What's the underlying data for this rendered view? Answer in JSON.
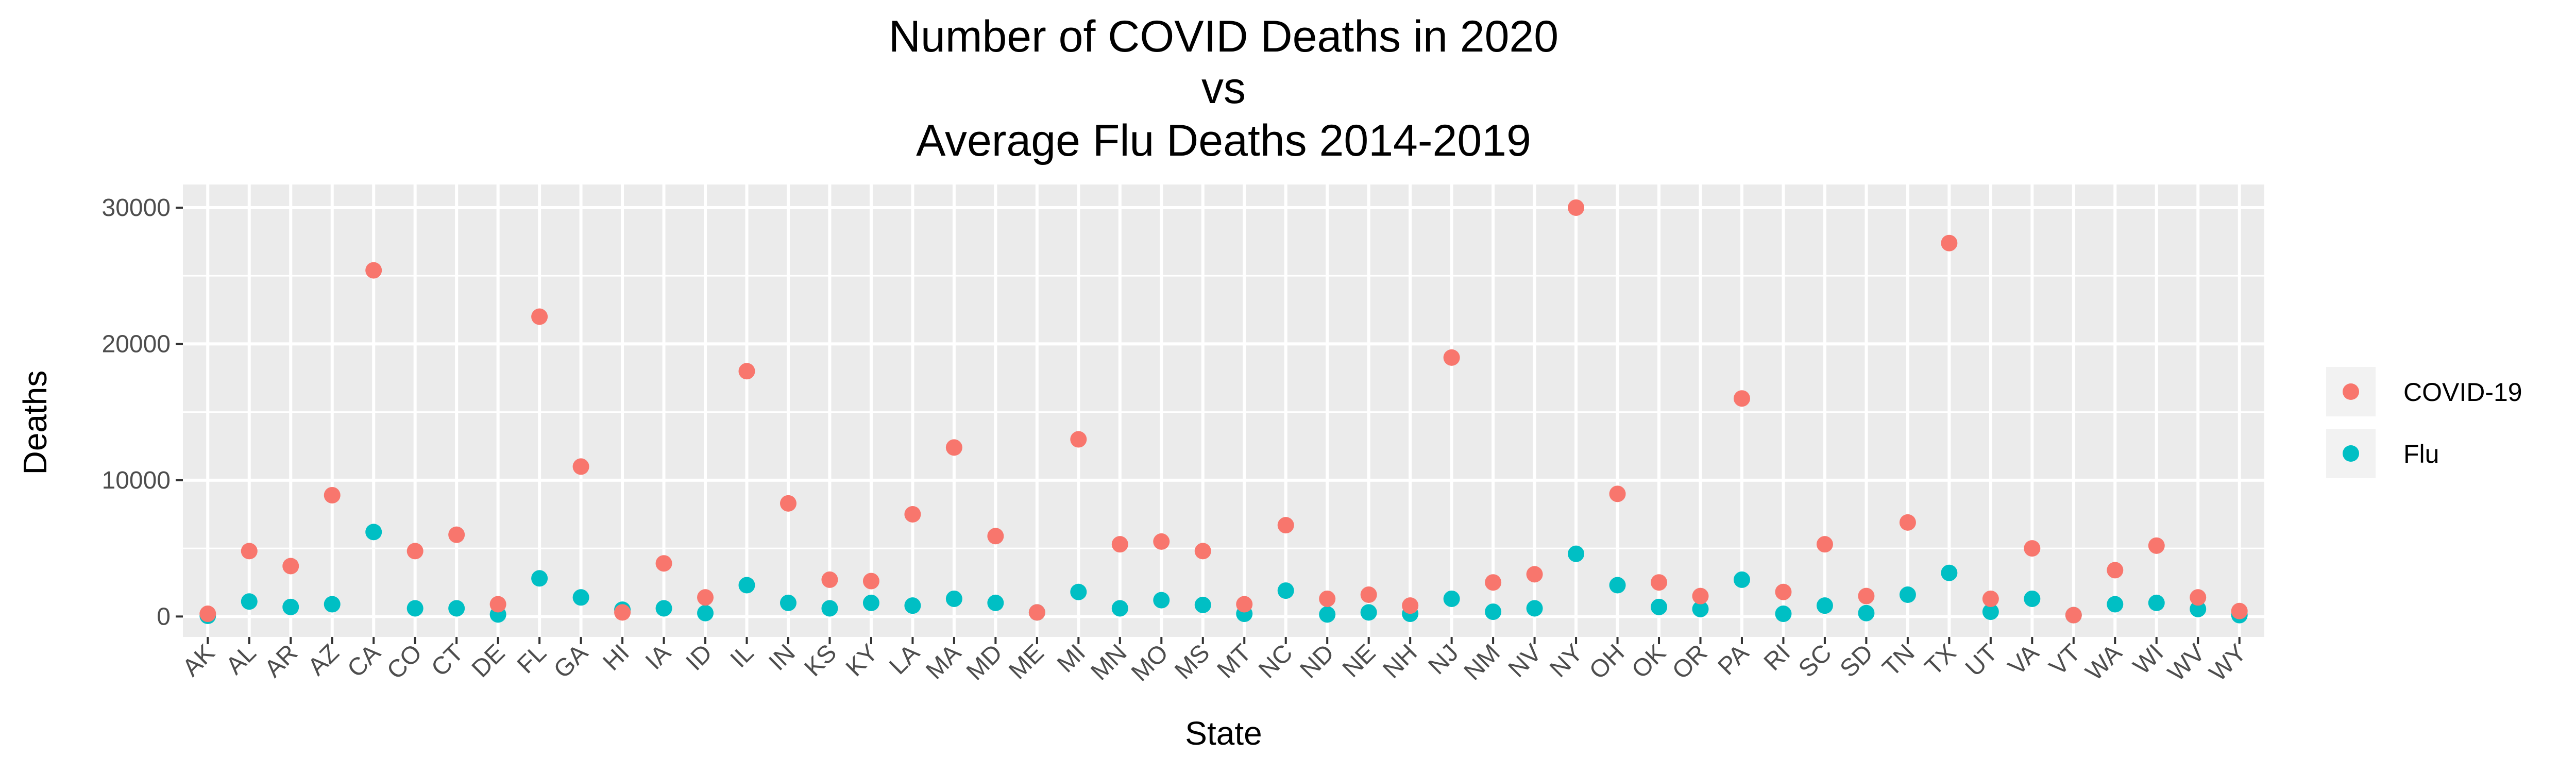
{
  "chart_data": {
    "type": "scatter",
    "title_lines": [
      "Number of COVID Deaths in 2020",
      "vs",
      "Average Flu Deaths 2014-2019"
    ],
    "xlabel": "State",
    "ylabel": "Deaths",
    "ylim": [
      -1500,
      31700
    ],
    "yticks": [
      0,
      10000,
      20000,
      30000
    ],
    "grid": true,
    "legend_position": "right",
    "categories": [
      "AK",
      "AL",
      "AR",
      "AZ",
      "CA",
      "CO",
      "CT",
      "DE",
      "FL",
      "GA",
      "HI",
      "IA",
      "ID",
      "IL",
      "IN",
      "KS",
      "KY",
      "LA",
      "MA",
      "MD",
      "ME",
      "MI",
      "MN",
      "MO",
      "MS",
      "MT",
      "NC",
      "ND",
      "NE",
      "NH",
      "NJ",
      "NM",
      "NV",
      "NY",
      "OH",
      "OK",
      "OR",
      "PA",
      "RI",
      "SC",
      "SD",
      "TN",
      "TX",
      "UT",
      "VA",
      "VT",
      "WA",
      "WI",
      "WV",
      "WY"
    ],
    "series": [
      {
        "name": "COVID-19",
        "color": "#F8766D",
        "values": [
          200,
          4800,
          3700,
          8900,
          25400,
          4800,
          6000,
          900,
          22000,
          11000,
          300,
          3900,
          1400,
          18000,
          8300,
          2700,
          2600,
          7500,
          12400,
          5900,
          300,
          13000,
          5300,
          5500,
          4800,
          900,
          6700,
          1300,
          1600,
          800,
          19000,
          2500,
          3100,
          30000,
          9000,
          2500,
          1500,
          16000,
          1800,
          5300,
          1500,
          6900,
          27400,
          1300,
          5000,
          100,
          3400,
          5200,
          1400,
          400
        ]
      },
      {
        "name": "Flu",
        "color": "#00BFC4",
        "values": [
          50,
          1100,
          700,
          900,
          6200,
          600,
          600,
          150,
          2800,
          1400,
          500,
          600,
          250,
          2300,
          1000,
          600,
          1000,
          800,
          1300,
          1000,
          300,
          1800,
          600,
          1200,
          850,
          200,
          1900,
          150,
          300,
          200,
          1300,
          350,
          600,
          4600,
          2300,
          700,
          550,
          2700,
          200,
          800,
          250,
          1600,
          3200,
          350,
          1300,
          100,
          900,
          1000,
          550,
          100
        ]
      }
    ]
  }
}
